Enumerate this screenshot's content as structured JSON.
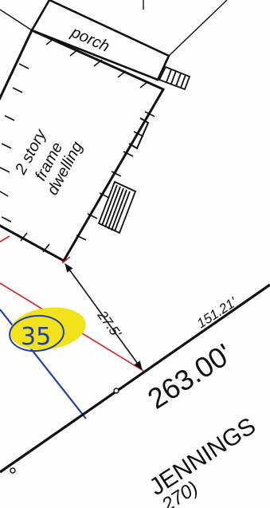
{
  "survey": {
    "porch_label": "porch",
    "dwelling_label_line1": "2 story",
    "dwelling_label_line2": "frame",
    "dwelling_label_line3": "dwelling",
    "setback_distance": "27.5'",
    "segment_distance": "151.21'",
    "frontage_distance": "263.00'",
    "street_name": "JENNINGS",
    "street_ref_partial": "270)",
    "marked_note": "35"
  },
  "colors": {
    "ink": "#111111",
    "red_line": "#d62020",
    "blue_line": "#1f3fb0",
    "highlight": "#f1e21c",
    "paper": "#fefefe"
  },
  "icons": {
    "stairs": "stair-steps-icon",
    "dimension_arrow": "arrow-icon"
  }
}
